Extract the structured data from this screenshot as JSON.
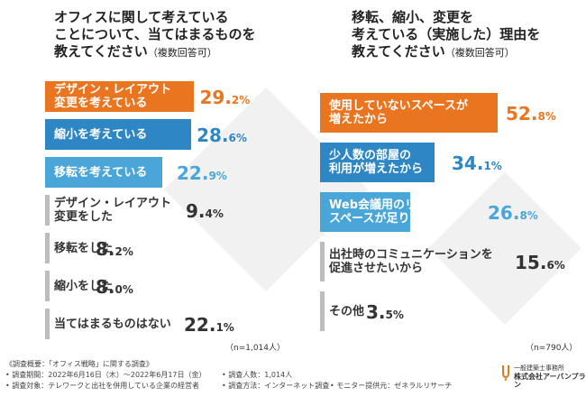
{
  "colors": {
    "orange": "#ea7520",
    "blue": "#2f86c4",
    "lightblue": "#4aa6d8",
    "gray": "#bdbdbd",
    "gray_text": "#333333"
  },
  "chart_data": [
    {
      "type": "bar",
      "title_lines": [
        "オフィスに関して考えている",
        "ことについて、当てはまるものを",
        "教えてください"
      ],
      "title_suffix": "（複数回答可）",
      "categories": [
        [
          "デザイン・レイアウト",
          "変更を考えている"
        ],
        [
          "縮小を考えている"
        ],
        [
          "移転を考えている"
        ],
        [
          "デザイン・レイアウト",
          "変更をした"
        ],
        [
          "移転をした"
        ],
        [
          "縮小をした"
        ],
        [
          "当てはまるものはない"
        ]
      ],
      "values": [
        29.2,
        28.6,
        22.9,
        9.4,
        8.2,
        8.0,
        22.1
      ],
      "value_labels": [
        [
          "29.",
          "2%"
        ],
        [
          "28.",
          "6%"
        ],
        [
          "22.",
          "9%"
        ],
        [
          "9.",
          "4%"
        ],
        [
          "8.",
          "2%"
        ],
        [
          "8.",
          "0%"
        ],
        [
          "22.",
          "1%"
        ]
      ],
      "bar_colors": [
        "orange",
        "blue",
        "lightblue",
        "gray",
        "gray",
        "gray",
        "gray"
      ],
      "note": "（n=1,014人）",
      "xlim": [
        0,
        30
      ]
    },
    {
      "type": "bar",
      "title_lines": [
        "移転、縮小、変更を",
        "考えている",
        "教えてください"
      ],
      "title_inline": [
        "",
        "（実施した）理由を",
        ""
      ],
      "title_suffix": "（複数回答可）",
      "categories": [
        [
          "使用していないスペースが",
          "増えたから"
        ],
        [
          "少人数の部屋の",
          "利用が増えたから"
        ],
        [
          "Web会議用のリモート",
          "スペースが足りないから"
        ],
        [
          "出社時のコミュニケーションを",
          "促進させたいから"
        ],
        [
          "その他"
        ]
      ],
      "values": [
        52.8,
        34.1,
        26.8,
        15.6,
        3.5
      ],
      "value_labels": [
        [
          "52.",
          "8%"
        ],
        [
          "34.",
          "1%"
        ],
        [
          "26.",
          "8%"
        ],
        [
          "15.",
          "6%"
        ],
        [
          "3.",
          "5%"
        ]
      ],
      "bar_colors": [
        "orange",
        "blue",
        "lightblue",
        "gray",
        "gray"
      ],
      "note": "（n=790人）",
      "xlim": [
        0,
        55
      ]
    }
  ],
  "footer": {
    "line1": "《調査概要：「オフィス戦略」に関する調査》",
    "line2a": "• 調査期間：2022年6月16日（木）〜2022年6月17日（金）",
    "line2b": "• 調査人数：1,014人",
    "line3a": "• 調査対象：テレワークと出社を併用している企業の経営者",
    "line3b": "• 調査方法：インターネット調査",
    "line3c": "• モニター提供元：ゼネラルリサーチ"
  },
  "logo": {
    "small": "一般建築士事務所",
    "name": "株式会社アーバンプラン"
  }
}
